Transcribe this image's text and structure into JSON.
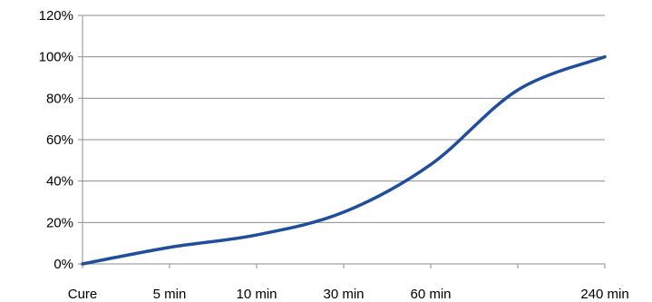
{
  "chart_data": {
    "type": "line",
    "title": "",
    "xlabel": "",
    "ylabel": "",
    "x_categories": [
      "Cure",
      "5 min",
      "10 min",
      "30 min",
      "60 min",
      "",
      "240 min"
    ],
    "y_ticks": [
      "0%",
      "20%",
      "40%",
      "60%",
      "80%",
      "100%",
      "120%"
    ],
    "ylim": [
      0,
      120
    ],
    "y_unit": "%",
    "grid": true,
    "legend": "none",
    "series": [
      {
        "color": "#1f4e9c",
        "values": [
          0,
          8,
          14,
          25,
          48,
          84,
          100
        ]
      }
    ]
  }
}
